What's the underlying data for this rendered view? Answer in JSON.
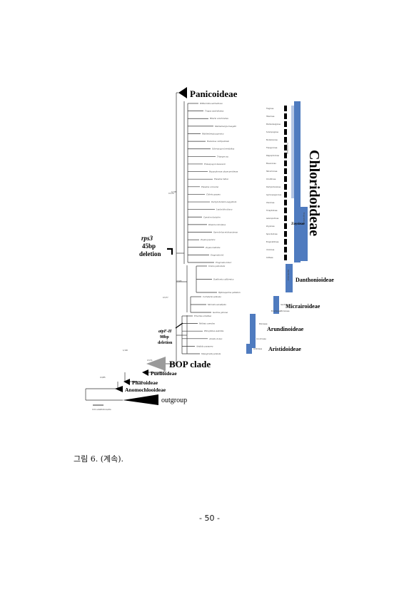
{
  "figure": {
    "clades": {
      "panicoideae": "Panicoideae",
      "bop": "BOP clade",
      "pueloideae": "Puelioideae",
      "pharoideae": "Pharoideae",
      "anomochlooideae": "Anomochlooideae",
      "outgroup": "outgroup"
    },
    "subfamilies": {
      "chloridoideae": "Chloridoideae",
      "danthonioideae": "Danthonioideae",
      "micrairoideae": "Micrairoideae",
      "arundinoideae": "Arundinoideae",
      "aristidoideae": "Aristidoideae"
    },
    "tribes": {
      "cynodonteae": "Cynodonteae",
      "zoysieae": "Zoysieae",
      "eragrostideae": "Eragrostideae",
      "danthonieae": "Danthonieae",
      "molinieae": "Molinieae",
      "arundineae": "Arundineae",
      "aristideae": "Aristideae",
      "micraireae": "Micraireae",
      "isachneae": "Isachneae",
      "eriachneae": "Eriachneae"
    },
    "subtribes": [
      "Traginae",
      "Hilariinae",
      "Muhlenbergiinae",
      "Scleropoginae",
      "Boutelouinae",
      "Tripogoninae",
      "Pappophorinae",
      "Eleusininae",
      "Tetrachninae",
      "Orcuttiinae",
      "Dactylocteniinae",
      "Gymnopogoninae",
      "Cteniinae",
      "Triraphidinae",
      "Aeluropodinae",
      "Zoysiinae",
      "Sporobolinae",
      "Eragrostidinae",
      "Uniolinae",
      "Cotteae"
    ],
    "annotations": {
      "rps3_title": "rps3",
      "rps3_value": "45bp",
      "rps3_word": "deletion",
      "atpf_title": "atpF-H",
      "atpf_value": "98bp",
      "atpf_word": "deletion"
    },
    "scale": "0.01 substitutions/site",
    "node_labels": [
      "0.5/79",
      "0.5/77",
      "0.5/65",
      "0.7/89",
      "1/100",
      "0.5/71",
      "0.9/85"
    ],
    "leaves": [
      "Willkommia sarmentosa",
      "Tragus australianus",
      "Hilaria cenchroides",
      "Muhlenbergia huegelii",
      "Muhlenbergia japonica",
      "Bouteloua curtipendula",
      "Scleropogon brevifolius",
      "Tripogon sp.",
      "Enneapogon desvauxii",
      "Pappophorum alopecuroideum",
      "Eleusine indica",
      "Eleusine coracana",
      "Chloris gayana",
      "Dactyloctenium aegyptium",
      "Leptochloa fusca",
      "Cynodon dactylon",
      "Dinebra retroflexa",
      "Sporobolus michauxianus",
      "Zoysia japonica",
      "Zoysia matrella",
      "Eragrostis tef",
      "Eragrostis minor",
      "Uniola paniculata",
      "Danthonia californica",
      "Rytidosperma pallidum",
      "Cortaderia selloana",
      "Micraira subulifolia",
      "Isachne globosa",
      "Eriachne aristidea",
      "Molinia caerulea",
      "Phragmites australis",
      "Arundo donax",
      "Aristida purpurea",
      "Stipagrostis pennata"
    ]
  },
  "caption": "그림 6. (계속).",
  "page_number": "- 50 -"
}
